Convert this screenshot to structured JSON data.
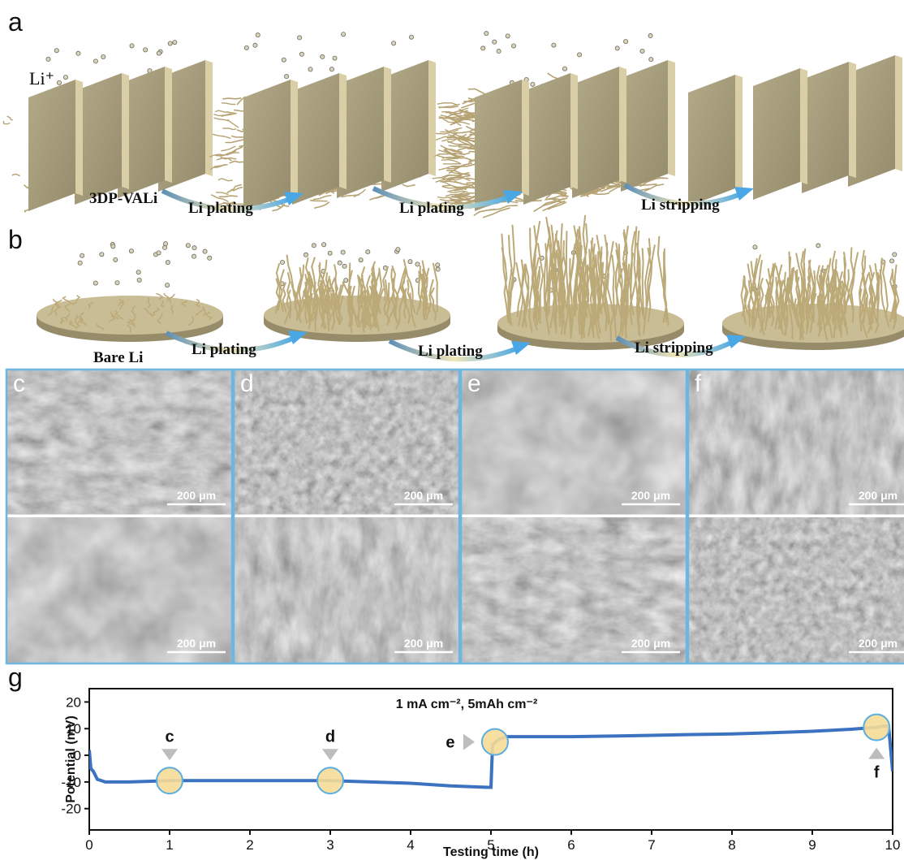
{
  "panel_a": {
    "label": "a",
    "ion": "Li⁺",
    "electrode": "3DP-VALi",
    "steps": [
      "Li plating",
      "Li plating",
      "Li stripping"
    ]
  },
  "panel_b": {
    "label": "b",
    "electrode": "Bare Li",
    "steps": [
      "Li plating",
      "Li plating",
      "Li stripping"
    ]
  },
  "sem": [
    {
      "label": "c",
      "scale_bars": [
        "200 μm",
        "200 μm"
      ]
    },
    {
      "label": "d",
      "scale_bars": [
        "200 μm",
        "200 μm"
      ]
    },
    {
      "label": "e",
      "scale_bars": [
        "200 μm",
        "200 μm"
      ]
    },
    {
      "label": "f",
      "scale_bars": [
        "200 μm",
        "200 μm"
      ]
    }
  ],
  "chart_data": {
    "type": "line",
    "panel_label": "g",
    "title": "1 mA cm⁻², 5mAh cm⁻²",
    "x_label": "Testing time (h)",
    "y_label": "Potential (mV)",
    "color": "#3b73c0",
    "x": [
      0,
      0.02,
      0.05,
      0.1,
      0.2,
      0.5,
      1,
      1.5,
      2,
      2.5,
      3,
      3.5,
      4,
      4.5,
      4.95,
      5,
      5.02,
      5.1,
      5.2,
      5.5,
      6,
      6.5,
      7,
      7.5,
      8,
      8.5,
      9,
      9.5,
      9.8,
      9.9,
      9.95,
      10
    ],
    "values": [
      2,
      -5,
      -6,
      -9,
      -10,
      -10,
      -9.5,
      -9.5,
      -9.5,
      -9.5,
      -9.5,
      -10,
      -10.5,
      -11.5,
      -12,
      -12,
      4,
      6,
      7,
      7,
      7,
      7.2,
      7.5,
      7.8,
      8,
      8.5,
      9,
      9.8,
      10.5,
      11,
      11,
      -6
    ],
    "xlim": [
      0,
      10
    ],
    "xticks": [
      0,
      1,
      2,
      3,
      4,
      5,
      6,
      7,
      8,
      9,
      10
    ],
    "ylim": [
      -28,
      25
    ],
    "yticks": [
      -20,
      -10,
      0,
      10,
      20
    ],
    "annotations": [
      {
        "label": "c",
        "x": 1,
        "y": -9.5
      },
      {
        "label": "d",
        "x": 3,
        "y": -9.5
      },
      {
        "label": "e",
        "x": 5.05,
        "y": 5
      },
      {
        "label": "f",
        "x": 9.8,
        "y": 10.5
      }
    ]
  }
}
